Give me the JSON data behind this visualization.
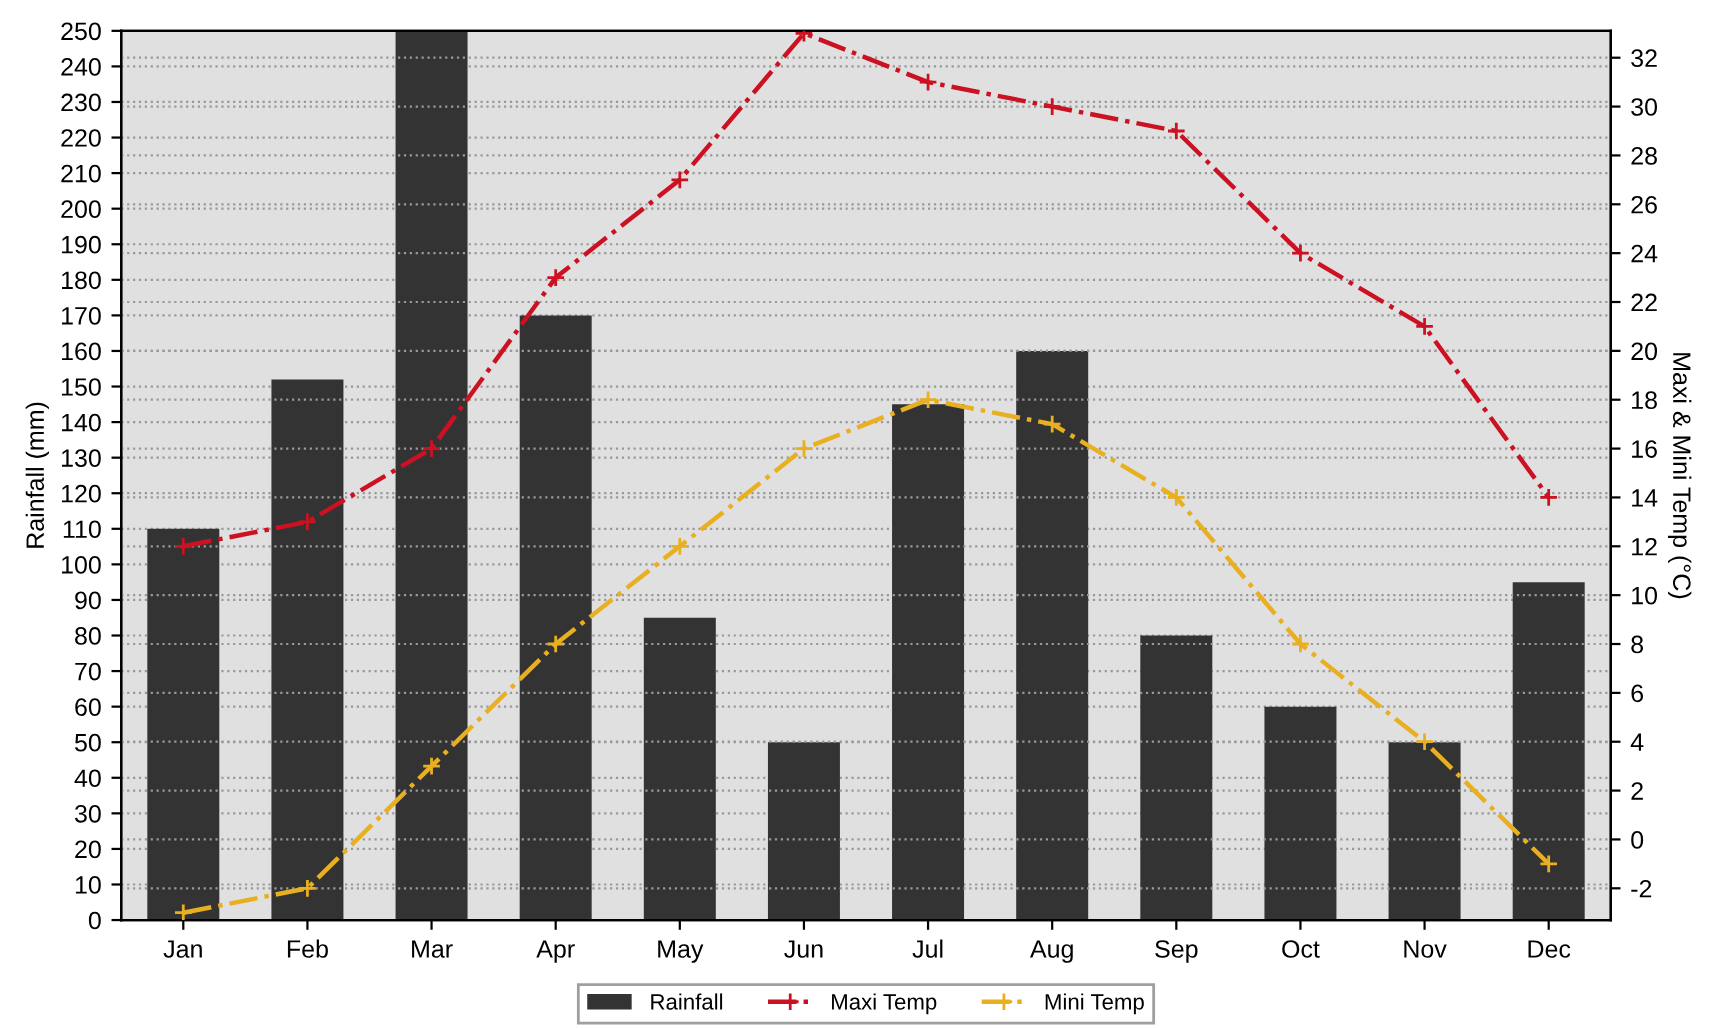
{
  "chart_data": {
    "type": "bar",
    "categories": [
      "Jan",
      "Feb",
      "Mar",
      "Apr",
      "May",
      "Jun",
      "Jul",
      "Aug",
      "Sep",
      "Oct",
      "Nov",
      "Dec"
    ],
    "ylabel": "Rainfall (mm)",
    "y2label": "Maxi & Mini Temp (°C)",
    "ylim": [
      0,
      250
    ],
    "yticks": [
      0,
      10,
      20,
      30,
      40,
      50,
      60,
      70,
      80,
      90,
      100,
      110,
      120,
      130,
      140,
      150,
      160,
      170,
      180,
      190,
      200,
      210,
      220,
      230,
      240,
      250
    ],
    "y2lim": [
      -3.3,
      33.1
    ],
    "y2ticks": [
      -2,
      0,
      2,
      4,
      6,
      8,
      10,
      12,
      14,
      16,
      18,
      20,
      22,
      24,
      26,
      28,
      30,
      32
    ],
    "grid": "y",
    "legend": "bottom",
    "series": [
      {
        "name": "Rainfall",
        "color": "#333333",
        "values": [
          110,
          152,
          250,
          170,
          85,
          50,
          145,
          160,
          80,
          60,
          50,
          95
        ]
      },
      {
        "name": "Maxi Temp",
        "type": "line",
        "axis": "y2",
        "color": "#cc1122",
        "marker": "cross",
        "line_style": "dashed",
        "values": [
          12,
          13,
          16,
          23,
          27,
          33,
          31,
          30,
          29,
          24,
          21,
          14
        ]
      },
      {
        "name": "Mini Temp",
        "type": "line",
        "axis": "y2",
        "color": "#e8b020",
        "marker": "cross",
        "line_style": "dashed",
        "values": [
          -3,
          -2,
          3,
          8,
          12,
          16,
          18,
          17,
          14,
          8,
          4,
          -1
        ]
      }
    ]
  }
}
